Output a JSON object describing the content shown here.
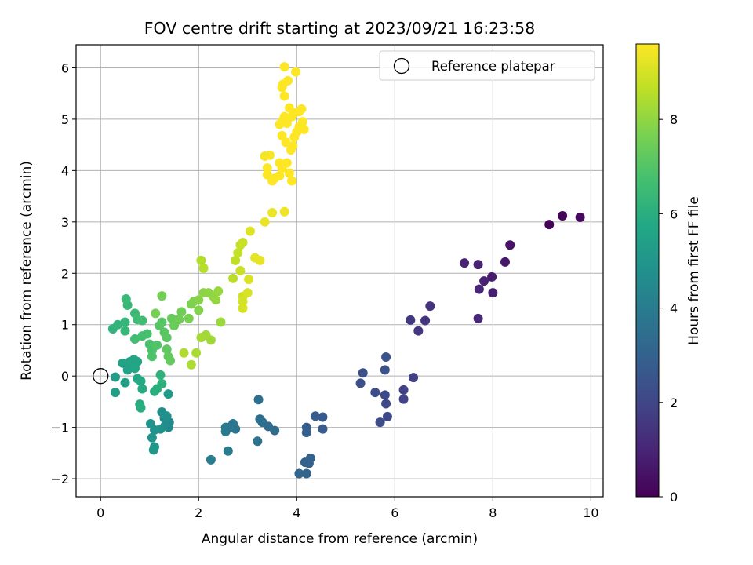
{
  "chart_data": {
    "type": "scatter",
    "title": "FOV centre drift starting at 2023/09/21 16:23:58",
    "xlabel": "Angular distance from reference (arcmin)",
    "ylabel": "Rotation from reference (arcmin)",
    "xlim": [
      -0.5,
      10.25
    ],
    "ylim": [
      -2.35,
      6.45
    ],
    "xticks": [
      0,
      2,
      4,
      6,
      8,
      10
    ],
    "xtick_labels": [
      "0",
      "2",
      "4",
      "6",
      "8",
      "10"
    ],
    "yticks": [
      -2,
      -1,
      0,
      1,
      2,
      3,
      4,
      5,
      6
    ],
    "ytick_labels": [
      "−2",
      "−1",
      "0",
      "1",
      "2",
      "3",
      "4",
      "5",
      "6"
    ],
    "grid": true,
    "colormap": "viridis",
    "colorbar": {
      "label": "Hours from first FF file",
      "range": [
        0,
        9.6
      ],
      "ticks": [
        0,
        2,
        4,
        6,
        8
      ],
      "tick_labels": [
        "0",
        "2",
        "4",
        "6",
        "8"
      ]
    },
    "legend": {
      "position": "top-right",
      "entries": [
        "Reference platepar"
      ]
    },
    "reference_point": {
      "x": 0,
      "y": 0
    },
    "series": [
      {
        "points": [
          [
            9.15,
            2.95,
            0.05
          ],
          [
            9.42,
            3.12,
            0.15
          ],
          [
            9.78,
            3.09,
            0.25
          ],
          [
            8.35,
            2.55,
            0.5
          ],
          [
            8.25,
            2.22,
            0.6
          ],
          [
            7.98,
            1.93,
            0.75
          ],
          [
            8.0,
            1.62,
            0.8
          ],
          [
            7.82,
            1.85,
            0.85
          ],
          [
            7.7,
            2.17,
            0.9
          ],
          [
            7.42,
            2.2,
            0.95
          ],
          [
            7.72,
            1.69,
            1.0
          ],
          [
            7.7,
            1.12,
            1.05
          ],
          [
            6.72,
            1.36,
            1.4
          ],
          [
            6.62,
            1.08,
            1.45
          ],
          [
            6.48,
            0.88,
            1.5
          ],
          [
            6.32,
            1.09,
            1.6
          ],
          [
            6.38,
            -0.03,
            1.8
          ],
          [
            6.18,
            -0.27,
            1.9
          ],
          [
            6.18,
            -0.45,
            1.95
          ],
          [
            5.85,
            -0.79,
            2.05
          ],
          [
            5.82,
            -0.54,
            2.1
          ],
          [
            5.8,
            -0.37,
            2.15
          ],
          [
            5.7,
            -0.9,
            2.2
          ],
          [
            5.6,
            -0.32,
            2.25
          ],
          [
            5.35,
            0.06,
            2.3
          ],
          [
            5.3,
            -0.14,
            2.35
          ],
          [
            5.8,
            0.12,
            2.4
          ],
          [
            5.82,
            0.37,
            2.45
          ],
          [
            4.53,
            -0.8,
            2.7
          ],
          [
            4.53,
            -1.03,
            2.75
          ],
          [
            4.38,
            -0.78,
            2.8
          ],
          [
            4.2,
            -1.0,
            2.85
          ],
          [
            4.2,
            -1.1,
            2.9
          ],
          [
            4.28,
            -1.6,
            2.95
          ],
          [
            4.25,
            -1.7,
            3.0
          ],
          [
            4.17,
            -1.68,
            3.05
          ],
          [
            4.2,
            -1.9,
            3.1
          ],
          [
            4.05,
            -1.9,
            3.15
          ],
          [
            3.55,
            -1.06,
            3.3
          ],
          [
            3.42,
            -0.98,
            3.35
          ],
          [
            3.3,
            -0.9,
            3.4
          ],
          [
            3.25,
            -0.84,
            3.45
          ],
          [
            3.22,
            -0.46,
            3.5
          ],
          [
            3.2,
            -1.27,
            3.6
          ],
          [
            2.75,
            -1.03,
            3.7
          ],
          [
            2.7,
            -0.93,
            3.75
          ],
          [
            2.62,
            -1.0,
            3.8
          ],
          [
            2.55,
            -1.0,
            3.85
          ],
          [
            2.55,
            -1.08,
            3.9
          ],
          [
            2.6,
            -1.46,
            3.95
          ],
          [
            2.25,
            -1.63,
            4.0
          ],
          [
            1.4,
            -0.9,
            4.5
          ],
          [
            1.38,
            -1.0,
            4.55
          ],
          [
            1.32,
            -0.96,
            4.6
          ],
          [
            1.3,
            -0.82,
            4.65
          ],
          [
            1.25,
            -0.7,
            4.7
          ],
          [
            1.35,
            -0.78,
            4.75
          ],
          [
            1.22,
            -1.03,
            4.8
          ],
          [
            1.1,
            -1.05,
            4.85
          ],
          [
            1.02,
            -0.93,
            4.9
          ],
          [
            1.05,
            -1.2,
            4.95
          ],
          [
            1.1,
            -1.38,
            5.0
          ],
          [
            1.08,
            -1.44,
            5.05
          ],
          [
            1.38,
            -0.35,
            5.2
          ],
          [
            0.3,
            -0.02,
            5.3
          ],
          [
            0.3,
            -0.32,
            5.35
          ],
          [
            0.5,
            -0.13,
            5.4
          ],
          [
            0.45,
            0.25,
            5.45
          ],
          [
            0.55,
            0.12,
            5.5
          ],
          [
            0.6,
            0.28,
            5.55
          ],
          [
            0.68,
            0.32,
            5.6
          ],
          [
            0.75,
            0.28,
            5.65
          ],
          [
            0.7,
            0.15,
            5.7
          ],
          [
            0.75,
            -0.05,
            5.75
          ],
          [
            0.82,
            -0.1,
            5.8
          ],
          [
            0.85,
            -0.25,
            5.85
          ],
          [
            0.8,
            -0.55,
            5.9
          ],
          [
            0.82,
            -0.62,
            5.95
          ],
          [
            1.1,
            -0.3,
            6.0
          ],
          [
            1.15,
            -0.25,
            6.05
          ],
          [
            1.25,
            -0.15,
            6.1
          ],
          [
            1.22,
            0.02,
            6.15
          ],
          [
            0.25,
            0.92,
            6.2
          ],
          [
            0.35,
            1.0,
            6.25
          ],
          [
            0.5,
            1.05,
            6.3
          ],
          [
            0.5,
            0.88,
            6.35
          ],
          [
            0.55,
            1.38,
            6.4
          ],
          [
            0.52,
            1.5,
            6.45
          ],
          [
            0.7,
            1.22,
            6.5
          ],
          [
            0.75,
            1.1,
            6.55
          ],
          [
            0.85,
            1.08,
            6.6
          ],
          [
            0.7,
            0.72,
            6.65
          ],
          [
            0.85,
            0.78,
            6.7
          ],
          [
            0.95,
            0.82,
            6.75
          ],
          [
            1.0,
            0.62,
            6.8
          ],
          [
            1.05,
            0.5,
            6.85
          ],
          [
            1.05,
            0.38,
            6.9
          ],
          [
            1.15,
            0.6,
            6.95
          ],
          [
            1.2,
            0.98,
            7.0
          ],
          [
            1.25,
            1.05,
            7.05
          ],
          [
            1.3,
            0.85,
            7.1
          ],
          [
            1.35,
            0.75,
            7.15
          ],
          [
            1.35,
            0.52,
            7.2
          ],
          [
            1.38,
            0.38,
            7.25
          ],
          [
            1.42,
            0.3,
            7.3
          ],
          [
            1.45,
            1.12,
            7.35
          ],
          [
            1.5,
            0.98,
            7.4
          ],
          [
            1.6,
            1.1,
            7.45
          ],
          [
            1.65,
            1.25,
            7.5
          ],
          [
            1.25,
            1.56,
            7.55
          ],
          [
            1.12,
            1.22,
            7.6
          ],
          [
            1.8,
            1.12,
            7.65
          ],
          [
            1.85,
            1.4,
            7.7
          ],
          [
            1.9,
            1.45,
            7.75
          ],
          [
            2.0,
            1.28,
            7.8
          ],
          [
            2.0,
            1.48,
            7.85
          ],
          [
            2.1,
            1.62,
            7.9
          ],
          [
            2.2,
            1.62,
            7.95
          ],
          [
            2.3,
            1.55,
            8.0
          ],
          [
            2.35,
            1.48,
            8.05
          ],
          [
            2.4,
            1.65,
            8.1
          ],
          [
            2.45,
            1.05,
            8.15
          ],
          [
            2.25,
            0.7,
            8.2
          ],
          [
            2.15,
            0.8,
            8.25
          ],
          [
            2.05,
            0.75,
            8.3
          ],
          [
            1.95,
            0.45,
            8.35
          ],
          [
            1.85,
            0.22,
            8.4
          ],
          [
            1.7,
            0.45,
            8.45
          ],
          [
            2.05,
            2.25,
            8.5
          ],
          [
            2.1,
            2.1,
            8.55
          ],
          [
            2.7,
            1.9,
            8.6
          ],
          [
            2.75,
            2.25,
            8.65
          ],
          [
            2.8,
            2.4,
            8.7
          ],
          [
            2.85,
            2.55,
            8.75
          ],
          [
            2.9,
            2.6,
            8.8
          ],
          [
            2.85,
            2.05,
            8.85
          ],
          [
            2.9,
            1.55,
            8.9
          ],
          [
            2.9,
            1.45,
            8.95
          ],
          [
            2.9,
            1.32,
            9.0
          ],
          [
            3.0,
            1.62,
            9.05
          ],
          [
            3.02,
            1.88,
            9.1
          ],
          [
            3.05,
            2.82,
            9.15
          ],
          [
            3.15,
            2.3,
            9.2
          ],
          [
            3.25,
            2.25,
            9.25
          ],
          [
            3.35,
            3.0,
            9.3
          ],
          [
            3.5,
            3.18,
            9.35
          ],
          [
            3.75,
            3.2,
            9.4
          ],
          [
            3.35,
            4.28,
            9.45
          ],
          [
            3.45,
            4.3,
            9.5
          ],
          [
            3.4,
            4.05,
            9.55
          ],
          [
            3.4,
            3.92,
            9.6
          ],
          [
            3.5,
            3.8,
            9.6
          ],
          [
            3.55,
            3.85,
            9.6
          ],
          [
            3.65,
            3.9,
            9.6
          ],
          [
            3.7,
            4.05,
            9.6
          ],
          [
            3.65,
            4.15,
            9.6
          ],
          [
            3.8,
            4.15,
            9.6
          ],
          [
            3.85,
            3.95,
            9.6
          ],
          [
            3.9,
            3.8,
            9.6
          ],
          [
            3.78,
            4.55,
            9.6
          ],
          [
            3.88,
            4.4,
            9.6
          ],
          [
            3.92,
            4.48,
            9.6
          ],
          [
            3.95,
            4.65,
            9.6
          ],
          [
            4.0,
            4.75,
            9.6
          ],
          [
            4.05,
            4.85,
            9.6
          ],
          [
            3.65,
            4.9,
            9.6
          ],
          [
            3.75,
            5.05,
            9.6
          ],
          [
            3.7,
            4.68,
            9.6
          ],
          [
            3.72,
            4.98,
            9.6
          ],
          [
            3.8,
            4.92,
            9.6
          ],
          [
            3.85,
            5.22,
            9.6
          ],
          [
            3.9,
            5.05,
            9.6
          ],
          [
            3.95,
            5.12,
            9.6
          ],
          [
            4.05,
            5.15,
            9.6
          ],
          [
            4.1,
            5.2,
            9.6
          ],
          [
            4.12,
            4.95,
            9.6
          ],
          [
            4.15,
            4.8,
            9.6
          ],
          [
            3.7,
            5.62,
            9.6
          ],
          [
            3.75,
            5.45,
            9.6
          ],
          [
            3.72,
            5.68,
            9.6
          ],
          [
            3.82,
            5.75,
            9.6
          ],
          [
            3.98,
            5.92,
            9.6
          ],
          [
            3.75,
            6.02,
            9.6
          ]
        ]
      }
    ]
  }
}
